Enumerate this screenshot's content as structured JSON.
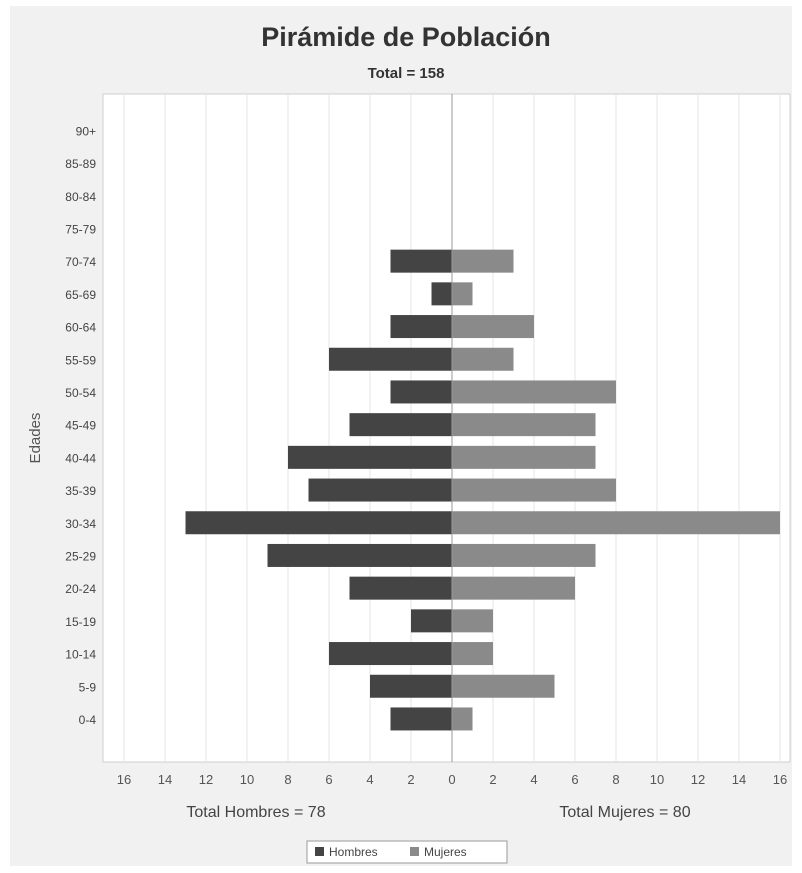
{
  "chart_data": {
    "type": "bar",
    "orientation": "horizontal-pyramid",
    "title": "Pirámide de Población",
    "subtitle": "Total = 158",
    "ylabel": "Edades",
    "categories": [
      "0-4",
      "5-9",
      "10-14",
      "15-19",
      "20-24",
      "25-29",
      "30-34",
      "35-39",
      "40-44",
      "45-49",
      "50-54",
      "55-59",
      "60-64",
      "65-69",
      "70-74",
      "75-79",
      "80-84",
      "85-89",
      "90+"
    ],
    "series": [
      {
        "name": "Hombres",
        "values": [
          3,
          4,
          6,
          2,
          5,
          9,
          13,
          7,
          8,
          5,
          3,
          6,
          3,
          1,
          3,
          0,
          0,
          0,
          0
        ],
        "color": "#444444"
      },
      {
        "name": "Mujeres",
        "values": [
          1,
          5,
          2,
          2,
          6,
          7,
          16,
          8,
          7,
          7,
          8,
          3,
          4,
          1,
          3,
          0,
          0,
          0,
          0
        ],
        "color": "#8a8a8a"
      }
    ],
    "xlim": [
      -16,
      16
    ],
    "xticks": [
      "16",
      "14",
      "12",
      "10",
      "8",
      "6",
      "4",
      "2",
      "0",
      "2",
      "4",
      "6",
      "8",
      "10",
      "12",
      "14",
      "16"
    ],
    "left_caption": "Total Hombres = 78",
    "right_caption": "Total Mujeres = 80",
    "grid": "vertical",
    "legend_position": "bottom-center"
  }
}
